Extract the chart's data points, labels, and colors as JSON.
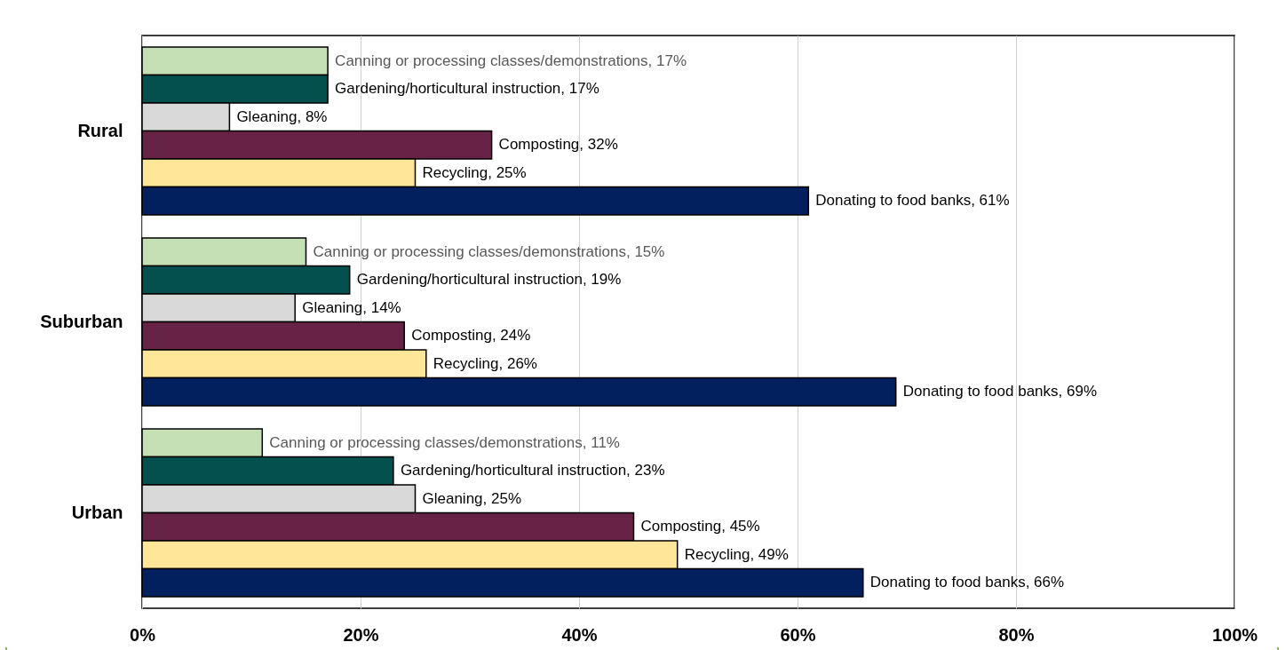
{
  "chart_data": {
    "type": "bar",
    "orientation": "horizontal",
    "categories": [
      "Rural",
      "Suburban",
      "Urban"
    ],
    "series": [
      {
        "color": "#c5e0b4",
        "values": [
          17,
          15,
          11
        ],
        "value_labels": [
          "Canning or processing classes/demonstrations, 17%",
          "Canning or processing classes/demonstrations, 15%",
          "Canning or processing classes/demonstrations, 11%"
        ]
      },
      {
        "color": "#03504f",
        "values": [
          17,
          19,
          23
        ],
        "value_labels": [
          "Gardening/horticultural instruction, 17%",
          "Gardening/horticultural instruction, 19%",
          "Gardening/horticultural instruction, 23%"
        ]
      },
      {
        "color": "#d9d9d9",
        "values": [
          8,
          14,
          25
        ],
        "value_labels": [
          "Gleaning, 8%",
          "Gleaning, 14%",
          "Gleaning, 25%"
        ]
      },
      {
        "color": "#672346",
        "values": [
          32,
          24,
          45
        ],
        "value_labels": [
          "Composting, 32%",
          "Composting, 24%",
          "Composting, 45%"
        ]
      },
      {
        "color": "#ffe699",
        "values": [
          25,
          26,
          49
        ],
        "value_labels": [
          "Recycling, 25%",
          "Recycling, 26%",
          "Recycling, 49%"
        ]
      },
      {
        "color": "#021f5e",
        "values": [
          61,
          69,
          66
        ],
        "value_labels": [
          "Donating to food banks, 61%",
          "Donating to food banks, 69%",
          "Donating to food banks, 66%"
        ]
      }
    ],
    "xlim": [
      0,
      100
    ],
    "xticks": [
      {
        "value": 0,
        "label": "0%"
      },
      {
        "value": 20,
        "label": "20%"
      },
      {
        "value": 40,
        "label": "40%"
      },
      {
        "value": 60,
        "label": "60%"
      },
      {
        "value": 80,
        "label": "80%"
      },
      {
        "value": 100,
        "label": "100%"
      }
    ],
    "grid": "x",
    "legend": false
  }
}
